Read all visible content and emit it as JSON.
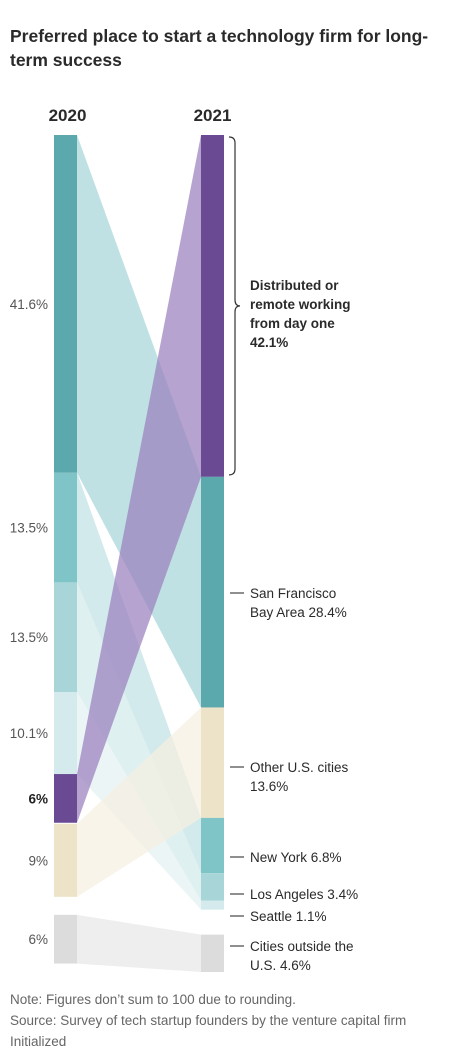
{
  "title": "Preferred place to start a technology firm for long-term success",
  "notes": {
    "rounding": "Note: Figures don’t sum to 100 due to rounding.",
    "source": "Source: Survey of tech startup founders by the venture capital firm Initialized"
  },
  "chart_data": {
    "type": "alluvial",
    "columns": [
      "2020",
      "2021"
    ],
    "y2020": {
      "categories": [
        {
          "label": "41.6%",
          "value": 41.6,
          "color": "#5ba8ad"
        },
        {
          "label": "13.5%",
          "value": 13.5,
          "color": "#7fc5c8"
        },
        {
          "label": "13.5%",
          "value": 13.5,
          "color": "#a8d6d8"
        },
        {
          "label": "10.1%",
          "value": 10.1,
          "color": "#d4eaec"
        },
        {
          "label": "6%",
          "value": 6,
          "color": "#6a4a92",
          "bold": true
        },
        {
          "label": "9%",
          "value": 9,
          "color": "#ece3c8"
        },
        {
          "label": "6%",
          "value": 6,
          "color": "#dcdcdc"
        }
      ]
    },
    "y2021": {
      "categories": [
        {
          "name": "Distributed or remote working from day one",
          "lines": [
            "Distributed or",
            "remote working",
            "from day one",
            "42.1%"
          ],
          "value": 42.1,
          "color": "#6a4a92",
          "bold": true
        },
        {
          "name": "San Francisco Bay Area",
          "lines": [
            "San Francisco",
            "Bay Area 28.4%"
          ],
          "value": 28.4,
          "color": "#5ba8ad"
        },
        {
          "name": "Other U.S. cities",
          "lines": [
            "Other U.S. cities",
            "13.6%"
          ],
          "value": 13.6,
          "color": "#ece3c8"
        },
        {
          "name": "New York",
          "lines": [
            "New York 6.8%"
          ],
          "value": 6.8,
          "color": "#7fc5c8"
        },
        {
          "name": "Los Angeles",
          "lines": [
            "Los Angeles 3.4%"
          ],
          "value": 3.4,
          "color": "#a8d6d8"
        },
        {
          "name": "Seattle",
          "lines": [
            "Seattle 1.1%"
          ],
          "value": 1.1,
          "color": "#d4eaec"
        },
        {
          "name": "Cities outside the U.S.",
          "lines": [
            "Cities outside the",
            "U.S. 4.6%"
          ],
          "value": 4.6,
          "color": "#dcdcdc"
        }
      ]
    },
    "flows": [
      {
        "from": 0,
        "to": 1,
        "color": "#a8d6d8"
      },
      {
        "from": 1,
        "to": 3,
        "color": "#c2e2e4"
      },
      {
        "from": 2,
        "to": 4,
        "color": "#d2eaec"
      },
      {
        "from": 3,
        "to": 5,
        "color": "#e3f1f2"
      },
      {
        "from": 4,
        "to": 0,
        "color": "#9a80be"
      },
      {
        "from": 5,
        "to": 2,
        "color": "#f5f0e1"
      },
      {
        "from": 6,
        "to": 6,
        "color": "#e8e8e8"
      }
    ]
  }
}
